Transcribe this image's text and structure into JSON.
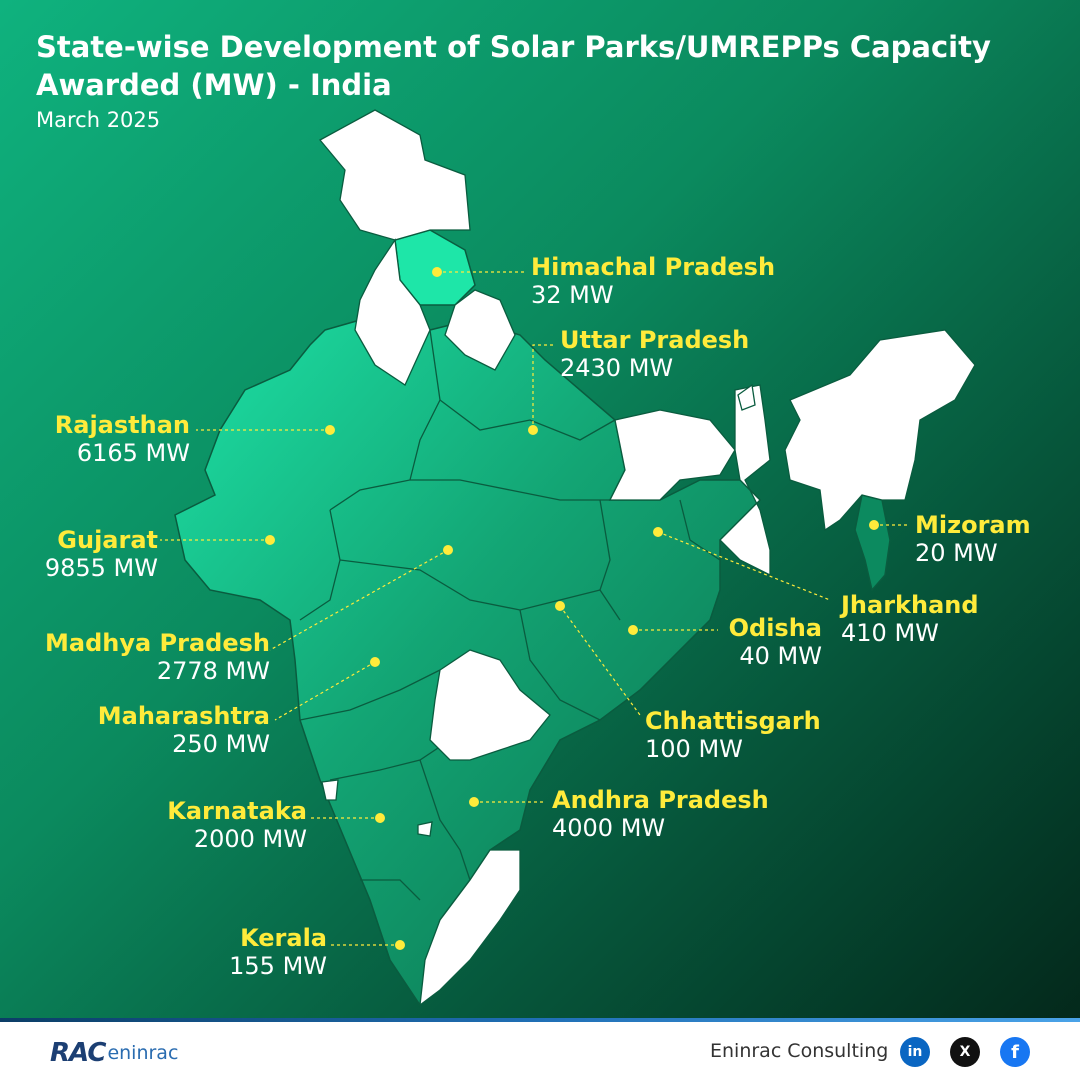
{
  "header": {
    "title": "State-wise Development of Solar Parks/UMREPPs Capacity Awarded (MW) - India",
    "subtitle": "March 2025"
  },
  "states": [
    {
      "id": "himachal-pradesh",
      "name": "Himachal Pradesh",
      "value": "32 MW"
    },
    {
      "id": "uttar-pradesh",
      "name": "Uttar Pradesh",
      "value": "2430 MW"
    },
    {
      "id": "rajasthan",
      "name": "Rajasthan",
      "value": "6165 MW"
    },
    {
      "id": "gujarat",
      "name": "Gujarat",
      "value": "9855 MW"
    },
    {
      "id": "madhya-pradesh",
      "name": "Madhya Pradesh",
      "value": "2778 MW"
    },
    {
      "id": "maharashtra",
      "name": "Maharashtra",
      "value": "250 MW"
    },
    {
      "id": "karnataka",
      "name": "Karnataka",
      "value": "2000 MW"
    },
    {
      "id": "kerala",
      "name": "Kerala",
      "value": "155 MW"
    },
    {
      "id": "mizoram",
      "name": "Mizoram",
      "value": "20 MW"
    },
    {
      "id": "jharkhand",
      "name": "Jharkhand",
      "value": "410 MW"
    },
    {
      "id": "odisha",
      "name": "Odisha",
      "value": "40 MW"
    },
    {
      "id": "chhattisgarh",
      "name": "Chhattisgarh",
      "value": "100 MW"
    },
    {
      "id": "andhra-pradesh",
      "name": "Andhra Pradesh",
      "value": "4000 MW"
    }
  ],
  "colors": {
    "highlight": "#ffeb3b",
    "map_green": "#12a372",
    "map_white": "#ffffff"
  },
  "footer": {
    "logo_rac": "RAC",
    "logo_eninrac": "eninrac",
    "company": "Eninrac Consulting",
    "social": [
      {
        "name": "linkedin-icon",
        "glyph": "in",
        "color": "#0a66c2"
      },
      {
        "name": "x-icon",
        "glyph": "X",
        "color": "#111111"
      },
      {
        "name": "facebook-icon",
        "glyph": "f",
        "color": "#1877f2"
      }
    ]
  }
}
